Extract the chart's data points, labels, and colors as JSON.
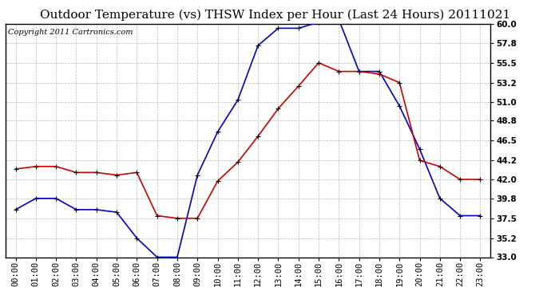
{
  "title": "Outdoor Temperature (vs) THSW Index per Hour (Last 24 Hours) 20111021",
  "copyright": "Copyright 2011 Cartronics.com",
  "x_labels": [
    "00:00",
    "01:00",
    "02:00",
    "03:00",
    "04:00",
    "05:00",
    "06:00",
    "07:00",
    "08:00",
    "09:00",
    "10:00",
    "11:00",
    "12:00",
    "13:00",
    "14:00",
    "15:00",
    "16:00",
    "17:00",
    "18:00",
    "19:00",
    "20:00",
    "21:00",
    "22:00",
    "23:00"
  ],
  "temp_data": [
    43.2,
    43.5,
    43.5,
    42.8,
    42.8,
    42.5,
    42.8,
    37.8,
    37.5,
    37.5,
    41.8,
    44.0,
    47.0,
    50.2,
    52.8,
    55.5,
    54.5,
    54.5,
    54.2,
    53.2,
    44.2,
    43.5,
    42.0,
    42.0
  ],
  "thsw_data": [
    38.5,
    39.8,
    39.8,
    38.5,
    38.5,
    38.2,
    35.2,
    33.0,
    33.0,
    42.5,
    47.5,
    51.2,
    57.5,
    59.5,
    59.5,
    60.2,
    60.5,
    54.5,
    54.5,
    50.5,
    45.5,
    39.8,
    37.8,
    37.8
  ],
  "temp_color": "#cc0000",
  "thsw_color": "#0000cc",
  "background_color": "#ffffff",
  "grid_color": "#bbbbbb",
  "ylim": [
    33.0,
    60.0
  ],
  "yticks": [
    33.0,
    35.2,
    37.5,
    39.8,
    42.0,
    44.2,
    46.5,
    48.8,
    51.0,
    53.2,
    55.5,
    57.8,
    60.0
  ],
  "title_fontsize": 11,
  "copyright_fontsize": 7,
  "axis_fontsize": 7.5,
  "marker": "+",
  "marker_size": 5,
  "marker_color": "#000000",
  "line_width": 1.2
}
